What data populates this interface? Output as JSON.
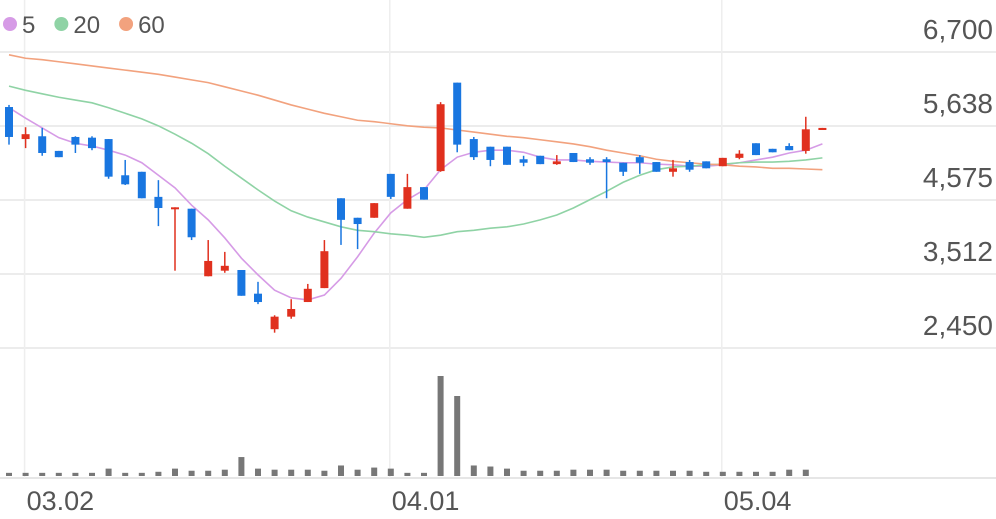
{
  "chart_data": {
    "type": "candlestick",
    "categories": [
      null,
      "03.02",
      null,
      null,
      null,
      null,
      null,
      null,
      null,
      null,
      null,
      null,
      null,
      null,
      null,
      null,
      null,
      null,
      null,
      null,
      null,
      null,
      null,
      "04.01",
      null,
      null,
      null,
      null,
      null,
      null,
      null,
      null,
      null,
      null,
      null,
      null,
      null,
      null,
      null,
      null,
      null,
      null,
      null,
      "05.04",
      null,
      null,
      null,
      null,
      null,
      null
    ],
    "ohlc": {
      "up_color": "#e0301e",
      "down_color": "#1976e0",
      "open": [
        5910,
        5450,
        5490,
        5280,
        5480,
        5470,
        5450,
        4930,
        4980,
        4620,
        4450,
        4450,
        3480,
        3560,
        3570,
        3230,
        2720,
        2900,
        3110,
        3310,
        4600,
        4320,
        4320,
        4950,
        4450,
        4760,
        4990,
        6260,
        5450,
        5340,
        5340,
        5160,
        5210,
        5090,
        5250,
        5160,
        5160,
        5110,
        5190,
        5120,
        4980,
        5120,
        5130,
        5060,
        5180,
        5390,
        5310,
        5350,
        5280,
        5580
      ],
      "high": [
        5940,
        5620,
        5610,
        5280,
        5490,
        5490,
        5450,
        5150,
        4980,
        4860,
        4470,
        4450,
        4000,
        3830,
        3570,
        3400,
        2920,
        3150,
        3370,
        4000,
        4600,
        4320,
        4530,
        4950,
        4950,
        4760,
        5980,
        6260,
        5480,
        5340,
        5340,
        5210,
        5210,
        5220,
        5250,
        5190,
        5190,
        5110,
        5220,
        5120,
        5150,
        5150,
        5130,
        5180,
        5290,
        5390,
        5310,
        5390,
        5770,
        5610
      ],
      "low": [
        5370,
        5320,
        5210,
        5190,
        5250,
        5290,
        4880,
        4790,
        4600,
        4200,
        3560,
        4000,
        3480,
        3530,
        3200,
        3080,
        2670,
        2870,
        3110,
        3310,
        3930,
        3870,
        4320,
        4590,
        4450,
        4580,
        4980,
        5260,
        5150,
        5060,
        5080,
        5060,
        5090,
        5080,
        5120,
        5080,
        4600,
        4920,
        4950,
        4980,
        4910,
        4980,
        5030,
        5060,
        5160,
        5220,
        5260,
        5290,
        5240,
        5580
      ],
      "close": [
        5480,
        5520,
        5250,
        5190,
        5370,
        5320,
        4910,
        4800,
        4600,
        4460,
        4470,
        4040,
        3700,
        3630,
        3200,
        3110,
        2900,
        3010,
        3300,
        3840,
        4290,
        4230,
        4530,
        4620,
        4760,
        4580,
        5950,
        5370,
        5190,
        5150,
        5080,
        5110,
        5090,
        5130,
        5120,
        5110,
        5120,
        4980,
        5110,
        4980,
        5030,
        5010,
        5030,
        5180,
        5240,
        5220,
        5260,
        5290,
        5590,
        5610
      ]
    },
    "series": [
      {
        "name": "5",
        "color": "#d69be6",
        "values": [
          5900,
          5750,
          5610,
          5470,
          5390,
          5350,
          5290,
          5220,
          5110,
          4930,
          4750,
          4500,
          4290,
          4030,
          3740,
          3500,
          3280,
          3170,
          3140,
          3210,
          3450,
          3760,
          4100,
          4390,
          4580,
          4720,
          5010,
          5190,
          5260,
          5290,
          5290,
          5260,
          5190,
          5150,
          5150,
          5130,
          5120,
          5110,
          5110,
          5090,
          5080,
          5060,
          5060,
          5080,
          5110,
          5150,
          5190,
          5250,
          5290,
          5380
        ]
      },
      {
        "name": "20",
        "color": "#8fd3a5",
        "values": [
          6210,
          6150,
          6100,
          6050,
          6010,
          5970,
          5900,
          5820,
          5740,
          5640,
          5520,
          5390,
          5240,
          5060,
          4890,
          4720,
          4560,
          4420,
          4330,
          4260,
          4190,
          4140,
          4120,
          4090,
          4070,
          4040,
          4070,
          4120,
          4140,
          4170,
          4190,
          4230,
          4290,
          4360,
          4460,
          4580,
          4700,
          4830,
          4930,
          5010,
          5050,
          5060,
          5080,
          5090,
          5110,
          5120,
          5120,
          5130,
          5150,
          5180
        ]
      },
      {
        "name": "60",
        "color": "#f2a27e",
        "values": [
          6660,
          6610,
          6590,
          6560,
          6530,
          6500,
          6470,
          6440,
          6410,
          6380,
          6340,
          6300,
          6260,
          6200,
          6140,
          6080,
          6010,
          5940,
          5880,
          5820,
          5770,
          5720,
          5700,
          5670,
          5640,
          5620,
          5610,
          5580,
          5550,
          5520,
          5490,
          5470,
          5440,
          5410,
          5380,
          5340,
          5290,
          5250,
          5210,
          5160,
          5130,
          5110,
          5090,
          5080,
          5060,
          5050,
          5030,
          5030,
          5020,
          5010
        ]
      }
    ],
    "volume": [
      3,
      3,
      3,
      3,
      3,
      3,
      7,
      3,
      3,
      4,
      7,
      5,
      5,
      6,
      18,
      7,
      6,
      6,
      6,
      5,
      10,
      6,
      8,
      7,
      3,
      3,
      95,
      76,
      10,
      9,
      7,
      5,
      5,
      5,
      6,
      6,
      6,
      5,
      5,
      5,
      5,
      5,
      4,
      4,
      4,
      4,
      4,
      6,
      6,
      null
    ],
    "volume_color": "#777777",
    "ylim": [
      2450,
      6700
    ],
    "yticks": [
      {
        "value": 6700,
        "label": "6,700"
      },
      {
        "value": 5638,
        "label": "5,638"
      },
      {
        "value": 4575,
        "label": "4,575"
      },
      {
        "value": 3512,
        "label": "3,512"
      },
      {
        "value": 2450,
        "label": "2,450"
      }
    ],
    "grid": true
  }
}
